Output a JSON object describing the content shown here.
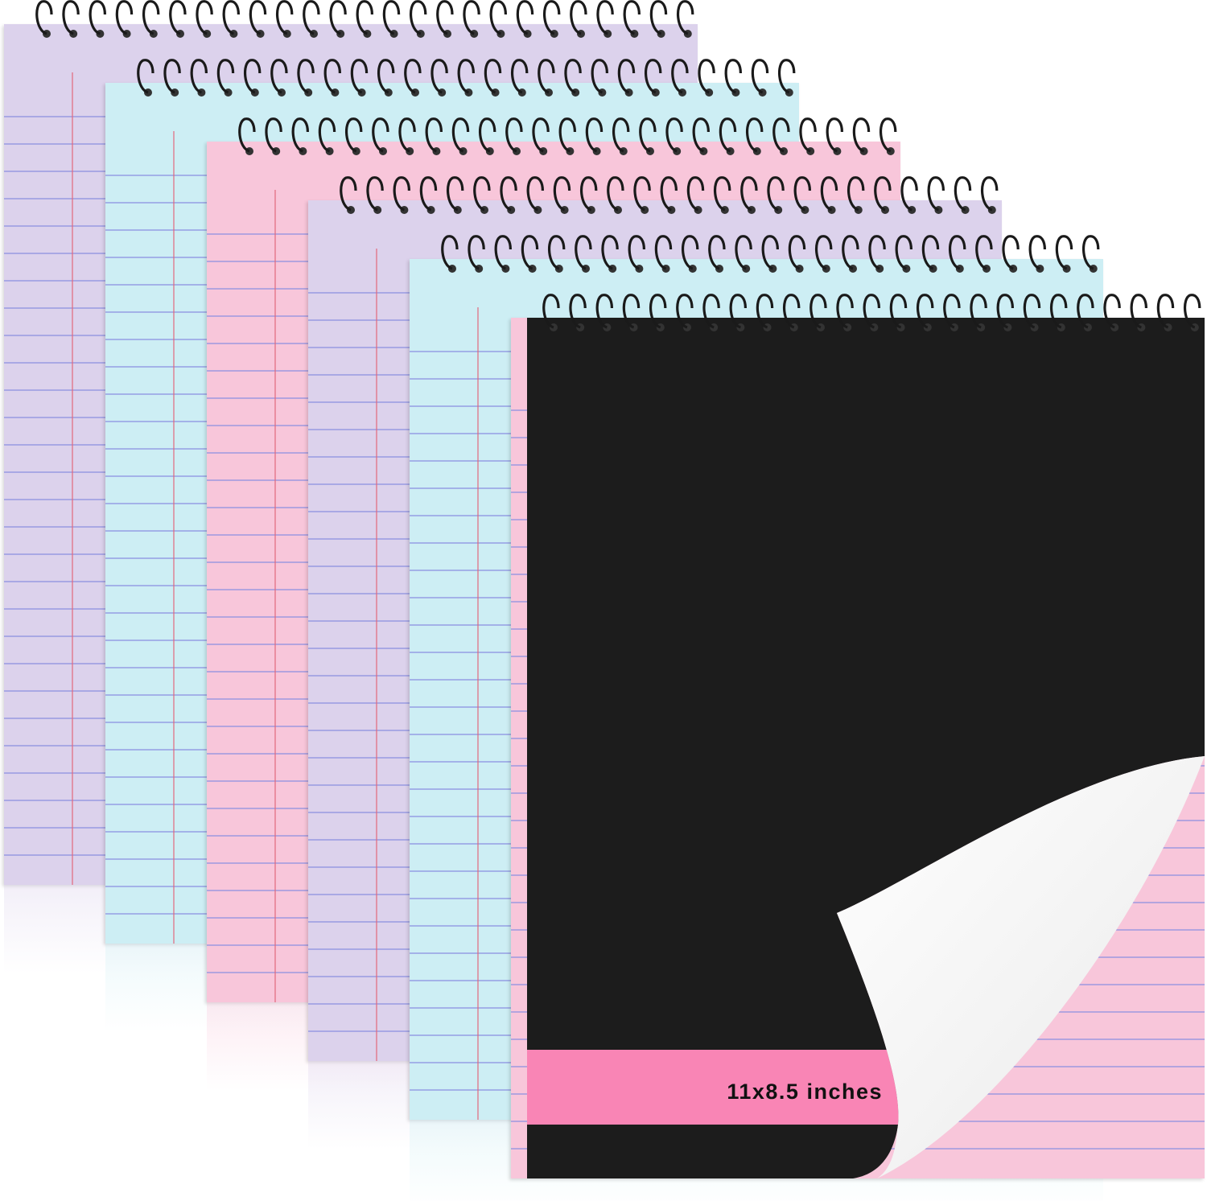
{
  "product": {
    "cover_label": "11x8.5 inches",
    "cover_color": "#1c1c1c",
    "band_color": "#f985b5",
    "spiral_color": "#1a1a1a",
    "ruling_color": "#8a8fe0",
    "margin_color": "#e2687c"
  },
  "pads": [
    {
      "name": "lavender",
      "paper": "#dcd2ec"
    },
    {
      "name": "blue",
      "paper": "#cdeef4"
    },
    {
      "name": "pink",
      "paper": "#f8c6da"
    },
    {
      "name": "lavender",
      "paper": "#dcd2ec"
    },
    {
      "name": "blue",
      "paper": "#cdeef4"
    },
    {
      "name": "pink",
      "paper": "#f8c6da"
    }
  ]
}
